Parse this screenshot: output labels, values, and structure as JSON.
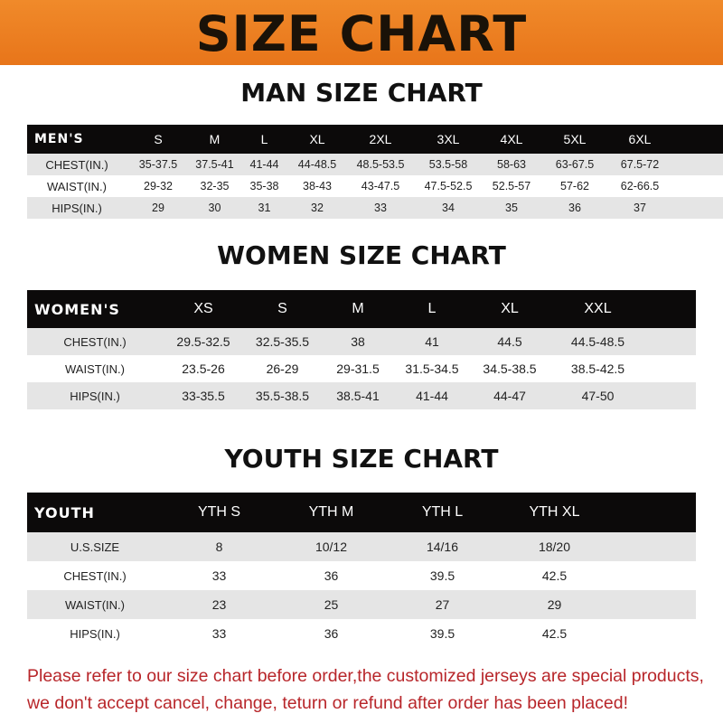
{
  "banner_title": "SIZE CHART",
  "men": {
    "title": "MAN SIZE CHART",
    "header": "MEN'S",
    "sizes": [
      "S",
      "M",
      "L",
      "XL",
      "2XL",
      "3XL",
      "4XL",
      "5XL",
      "6XL"
    ],
    "rows": [
      {
        "label": "CHEST(IN.)",
        "values": [
          "35-37.5",
          "37.5-41",
          "41-44",
          "44-48.5",
          "48.5-53.5",
          "53.5-58",
          "58-63",
          "63-67.5",
          "67.5-72"
        ]
      },
      {
        "label": "WAIST(IN.)",
        "values": [
          "29-32",
          "32-35",
          "35-38",
          "38-43",
          "43-47.5",
          "47.5-52.5",
          "52.5-57",
          "57-62",
          "62-66.5"
        ]
      },
      {
        "label": "HIPS(IN.)",
        "values": [
          "29",
          "30",
          "31",
          "32",
          "33",
          "34",
          "35",
          "36",
          "37"
        ]
      }
    ]
  },
  "women": {
    "title": "WOMEN SIZE CHART",
    "header": "WOMEN'S",
    "sizes": [
      "XS",
      "S",
      "M",
      "L",
      "XL",
      "XXL"
    ],
    "rows": [
      {
        "label": "CHEST(IN.)",
        "values": [
          "29.5-32.5",
          "32.5-35.5",
          "38",
          "41",
          "44.5",
          "44.5-48.5"
        ]
      },
      {
        "label": "WAIST(IN.)",
        "values": [
          "23.5-26",
          "26-29",
          "29-31.5",
          "31.5-34.5",
          "34.5-38.5",
          "38.5-42.5"
        ]
      },
      {
        "label": "HIPS(IN.)",
        "values": [
          "33-35.5",
          "35.5-38.5",
          "38.5-41",
          "41-44",
          "44-47",
          "47-50"
        ]
      }
    ]
  },
  "youth": {
    "title": "YOUTH SIZE CHART",
    "header": "YOUTH",
    "sizes": [
      "YTH S",
      "YTH M",
      "YTH L",
      "YTH XL"
    ],
    "rows": [
      {
        "label": "U.S.SIZE",
        "values": [
          "8",
          "10/12",
          "14/16",
          "18/20"
        ]
      },
      {
        "label": "CHEST(IN.)",
        "values": [
          "33",
          "36",
          "39.5",
          "42.5"
        ]
      },
      {
        "label": "WAIST(IN.)",
        "values": [
          "23",
          "25",
          "27",
          "29"
        ]
      },
      {
        "label": "HIPS(IN.)",
        "values": [
          "33",
          "36",
          "39.5",
          "42.5"
        ]
      }
    ]
  },
  "note_lines": [
    "Please refer to our size chart before order,the customized jerseys are special products,",
    "we don't accept cancel, change, teturn or refund after order has been placed!"
  ]
}
